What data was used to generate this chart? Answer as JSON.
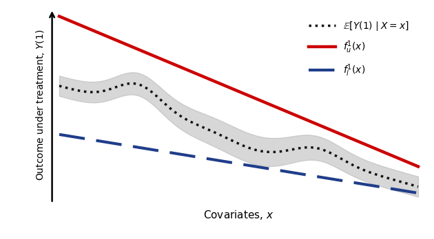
{
  "title": "",
  "xlabel": "Covariates, $x$",
  "ylabel": "Outcome under treatment, $Y(1)$",
  "xlim": [
    0,
    1
  ],
  "ylim": [
    0,
    1
  ],
  "background_color": "#ffffff",
  "upper_bound_color": "#cc0000",
  "lower_bound_color": "#1f3d8a",
  "dotted_line_color": "#111111",
  "band_color": "#b0b0b0",
  "band_alpha": 0.5,
  "legend_labels": [
    "$\\mathbb{E}[Y(1) \\mid X = x]$",
    "$f_u^1(x)$",
    "$f_l^1(x)$"
  ],
  "legend_colors": [
    "#111111",
    "#cc0000",
    "#1f3d8a"
  ],
  "figsize": [
    6.3,
    3.48
  ],
  "dpi": 100
}
